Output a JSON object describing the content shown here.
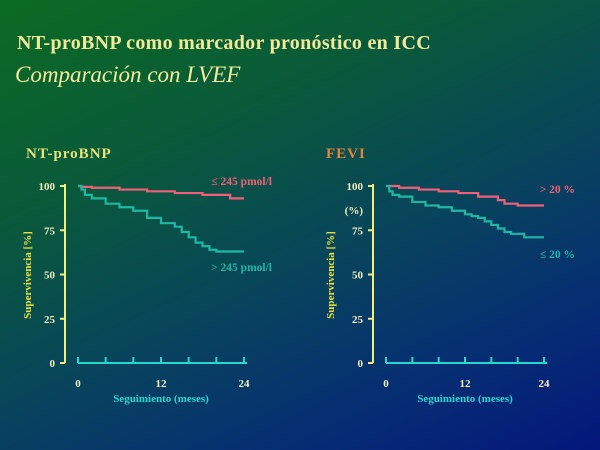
{
  "slide": {
    "title": "NT-proBNP como marcador pronóstico en ICC",
    "subtitle": "Comparación con LVEF"
  },
  "colors": {
    "title": "#f2ea9a",
    "y_axis": "#f2ee7a",
    "x_axis": "#24d8d0",
    "tick_text": "#f4f0c0",
    "axis_label": "#e8e040",
    "x_label": "#24d8d0",
    "series_high": "#f0607a",
    "series_low": "#1fb8a4",
    "panel1_title": "#e8e27a",
    "panel2_title": "#e8823c"
  },
  "chart_data": [
    {
      "type": "line",
      "panel_title": "NT-proBNP",
      "ylabel": "Supervivencia [%]",
      "xlabel": "Seguimiento (meses)",
      "xticks": [
        0,
        12,
        24
      ],
      "yticks": [
        0,
        25,
        50,
        75,
        100
      ],
      "xlim": [
        0,
        24
      ],
      "ylim": [
        0,
        100
      ],
      "series": [
        {
          "name": "≤ 245 pmol/l",
          "color": "#f0607a",
          "x": [
            0,
            0.5,
            2,
            6,
            10,
            14,
            18,
            22,
            24
          ],
          "y": [
            100,
            99.5,
            99,
            98,
            97,
            96,
            95,
            93,
            93
          ]
        },
        {
          "name": "> 245 pmol/l",
          "color": "#1fb8a4",
          "x": [
            0,
            0.5,
            1,
            2,
            4,
            6,
            8,
            10,
            12,
            14,
            15,
            16,
            17,
            18,
            19,
            20,
            22,
            24
          ],
          "y": [
            100,
            98,
            95,
            93,
            90,
            88,
            86,
            82,
            79,
            77,
            74,
            71,
            68,
            66,
            64,
            63,
            63,
            63
          ]
        }
      ]
    },
    {
      "type": "line",
      "panel_title": "FEVI",
      "ylabel": "Supervivencia [%]",
      "yunit_note": "(%)",
      "xlabel": "Seguimiento (meses)",
      "xticks": [
        0,
        12,
        24
      ],
      "yticks": [
        0,
        25,
        50,
        75,
        100
      ],
      "xlim": [
        0,
        24
      ],
      "ylim": [
        0,
        100
      ],
      "series": [
        {
          "name": "> 20 %",
          "color": "#f0607a",
          "x": [
            0,
            2,
            5,
            8,
            11,
            14,
            17,
            18,
            20,
            24
          ],
          "y": [
            100,
            99,
            98,
            97,
            96,
            94,
            92,
            90,
            89,
            89
          ]
        },
        {
          "name": "≤ 20 %",
          "color": "#1fb8a4",
          "x": [
            0,
            0.5,
            1,
            2,
            4,
            6,
            8,
            10,
            12,
            13,
            14,
            15,
            16,
            17,
            18,
            19,
            21,
            24
          ],
          "y": [
            100,
            97,
            95,
            94,
            91,
            89,
            88,
            86,
            84,
            83,
            82,
            80,
            78,
            76,
            74,
            73,
            71,
            71
          ]
        }
      ]
    }
  ]
}
